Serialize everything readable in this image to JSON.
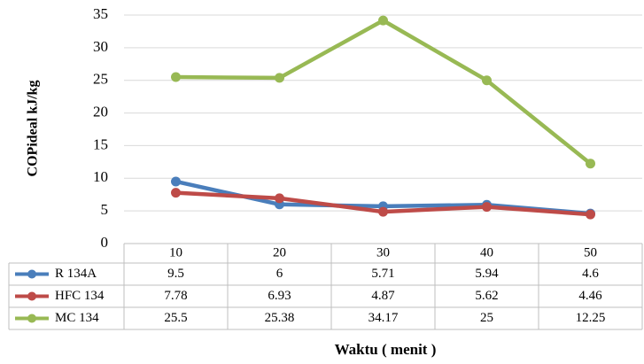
{
  "chart_data": {
    "type": "line",
    "y_label": "COPideal   kJ/kg",
    "x_label": "Waktu ( menit )",
    "categories": [
      "10",
      "20",
      "30",
      "40",
      "50"
    ],
    "series": [
      {
        "name": "R 134A",
        "color": "#4a7ebb",
        "values": [
          9.5,
          6,
          5.71,
          5.94,
          4.6
        ]
      },
      {
        "name": "HFC 134",
        "color": "#be4b48",
        "values": [
          7.78,
          6.93,
          4.87,
          5.62,
          4.46
        ]
      },
      {
        "name": "MC 134",
        "color": "#98b954",
        "values": [
          25.5,
          25.38,
          34.17,
          25,
          12.25
        ]
      }
    ],
    "ylim": [
      0,
      35
    ],
    "yticks": [
      0,
      5,
      10,
      15,
      20,
      25,
      30,
      35
    ],
    "grid": true,
    "data_table": true
  }
}
